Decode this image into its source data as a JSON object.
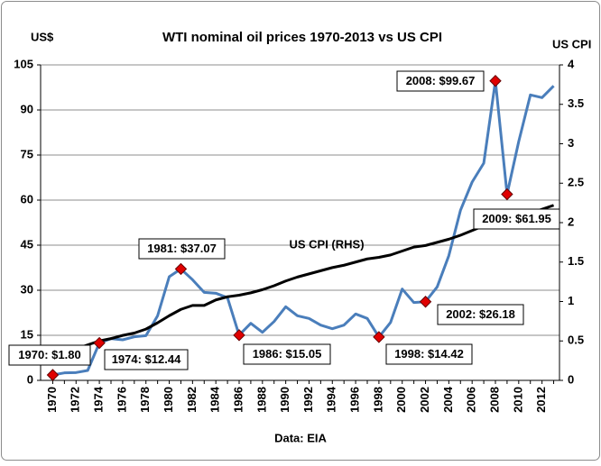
{
  "chart_data": {
    "type": "line",
    "title": "WTI nominal oil prices 1970-2013 vs US CPI",
    "y_label": "US$",
    "y2_label": "US CPI",
    "x_label": "Data: EIA",
    "categories": [
      "1970",
      null,
      "1972",
      null,
      "1974",
      null,
      "1976",
      null,
      "1978",
      null,
      "1980",
      null,
      "1982",
      null,
      "1984",
      null,
      "1986",
      null,
      "1988",
      null,
      "1990",
      null,
      "1992",
      null,
      "1994",
      null,
      "1996",
      null,
      "1998",
      null,
      "2000",
      null,
      "2002",
      null,
      "2004",
      null,
      "2006",
      null,
      "2008",
      null,
      "2010",
      null,
      "2012",
      null
    ],
    "series": [
      {
        "color": "#4a7ebb",
        "values": [
          1.8,
          2.5,
          2.6,
          3.3,
          12.44,
          13.9,
          13.5,
          14.5,
          14.9,
          21.5,
          34.5,
          37.07,
          33.5,
          29.3,
          29,
          27.5,
          15.05,
          19,
          16,
          19.6,
          24.5,
          21.5,
          20.6,
          18.4,
          17.2,
          18.4,
          22.1,
          20.6,
          14.42,
          19.3,
          30.4,
          25.9,
          26.18,
          31.1,
          41.5,
          56.6,
          66,
          72.3,
          99.67,
          61.95,
          79.5,
          95,
          94.1,
          98
        ]
      },
      {
        "name": "US CPI (RHS)",
        "color": "#000000",
        "axis": "y2",
        "values": [
          null,
          null,
          0.4,
          0.45,
          0.5,
          0.53,
          0.57,
          0.6,
          0.65,
          0.73,
          0.82,
          0.9,
          0.95,
          0.95,
          1.02,
          1.06,
          1.08,
          1.11,
          1.15,
          1.2,
          1.26,
          1.31,
          1.35,
          1.39,
          1.43,
          1.46,
          1.5,
          1.54,
          1.56,
          1.59,
          1.64,
          1.69,
          1.71,
          1.75,
          1.79,
          1.84,
          1.9,
          1.96,
          2.01,
          2.02,
          2.06,
          2.12,
          2.17,
          2.22
        ]
      }
    ],
    "annotations": [
      "1970: $1.80",
      "1974: $12.44",
      "1981: $37.07",
      "1986: $15.05",
      "1998: $14.42",
      "2002: $26.18",
      "2008: $99.67",
      "2009: $61.95"
    ],
    "marker_color": "#e00000",
    "ylim": [
      0,
      105
    ],
    "yticks": [
      0,
      15,
      30,
      45,
      60,
      75,
      90,
      105
    ],
    "y2lim": [
      0,
      4
    ],
    "y2ticks": [
      0,
      0.5,
      1,
      1.5,
      2,
      2.5,
      3,
      3.5,
      4
    ],
    "grid": true
  }
}
